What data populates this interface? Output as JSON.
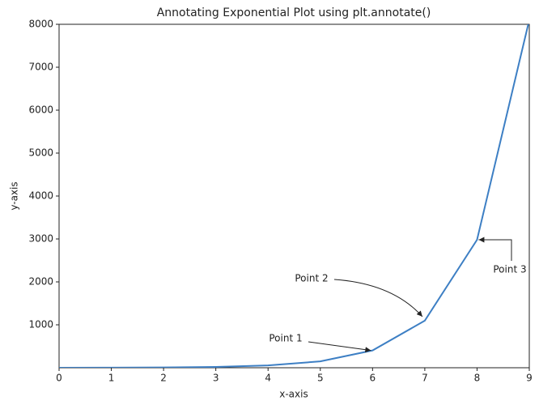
{
  "chart_data": {
    "type": "line",
    "title": "Annotating Exponential Plot using plt.annotate()",
    "x_label": "x-axis",
    "y_label": "y-axis",
    "x": [
      0,
      1,
      2,
      3,
      4,
      5,
      6,
      7,
      8,
      9
    ],
    "values": [
      1,
      3,
      7,
      20,
      55,
      148,
      403,
      1097,
      2981,
      8103
    ],
    "color": "#3d7fc4",
    "xlim": [
      0,
      9
    ],
    "xticks": [
      0,
      1,
      2,
      3,
      4,
      5,
      6,
      7,
      8,
      9
    ],
    "ylim": [
      0,
      8000
    ],
    "yticks": [
      1000,
      2000,
      3000,
      4000,
      5000,
      6000,
      7000,
      8000
    ],
    "annotations": [
      "Point 1",
      "Point 2",
      "Point 3"
    ]
  }
}
